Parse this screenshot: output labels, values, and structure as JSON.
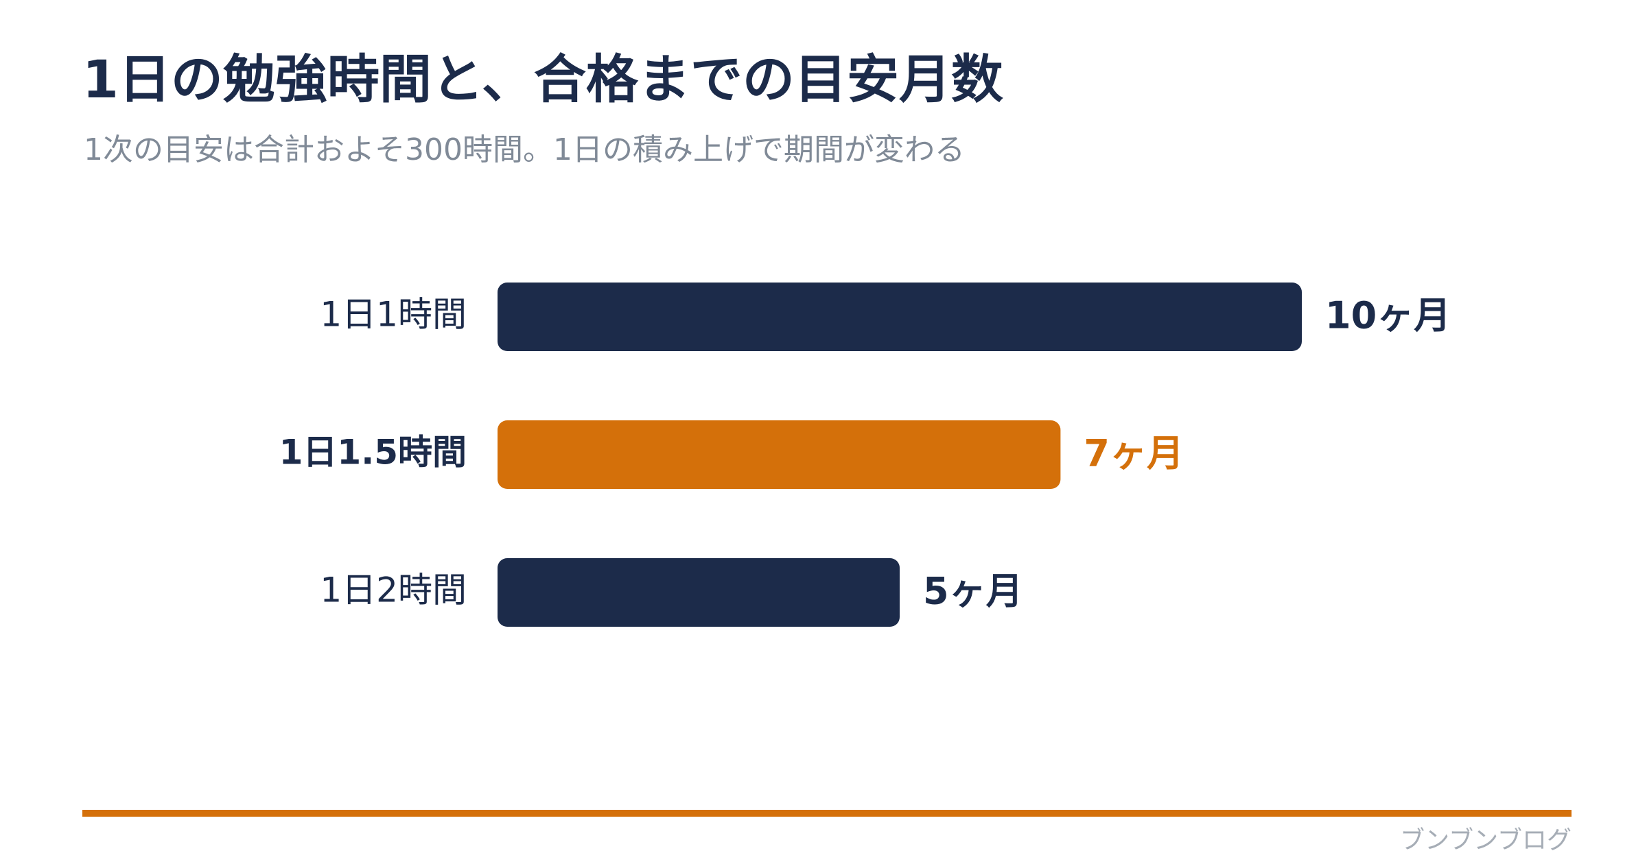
{
  "title": "1日の勉強時間と、合格までの目安月数",
  "subtitle": "1次の目安は合計およそ300時間。1日の積み上げで期間が変わる",
  "brand": "ブンブンブログ",
  "colors": {
    "bar_default": "#1c2b4a",
    "bar_highlight": "#d4700a",
    "text_dark": "#1c2b4a",
    "subtitle": "#808a97",
    "accent": "#d4700a"
  },
  "chart_data": {
    "type": "bar",
    "orientation": "horizontal",
    "title": "1日の勉強時間と、合格までの目安月数",
    "subtitle": "1次の目安は合計およそ300時間。1日の積み上げで期間が変わる",
    "categories": [
      "1日1時間",
      "1日1.5時間",
      "1日2時間"
    ],
    "values": [
      10,
      7,
      5
    ],
    "value_labels": [
      "10ヶ月",
      "7ヶ月",
      "5ヶ月"
    ],
    "highlight_index": 1,
    "xlim": [
      0,
      10
    ],
    "grid": false,
    "legend": "none"
  }
}
